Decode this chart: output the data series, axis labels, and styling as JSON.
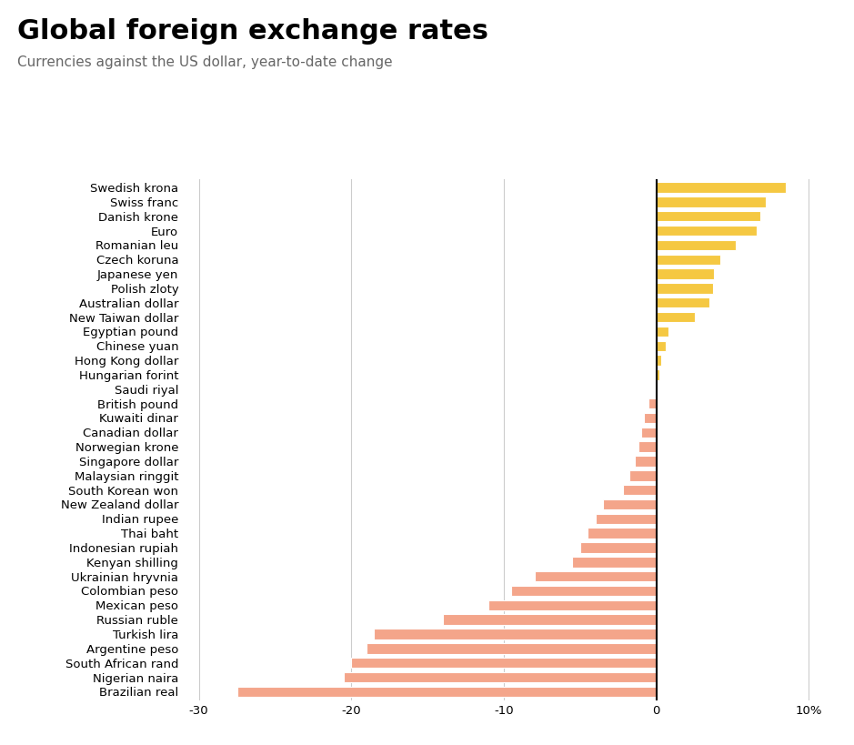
{
  "title": "Global foreign exchange rates",
  "subtitle": "Currencies against the US dollar, year-to-date change",
  "currencies": [
    "Swedish krona",
    "Swiss franc",
    "Danish krone",
    "Euro",
    "Romanian leu",
    "Czech koruna",
    "Japanese yen",
    "Polish zloty",
    "Australian dollar",
    "New Taiwan dollar",
    "Egyptian pound",
    "Chinese yuan",
    "Hong Kong dollar",
    "Hungarian forint",
    "Saudi riyal",
    "British pound",
    "Kuwaiti dinar",
    "Canadian dollar",
    "Norwegian krone",
    "Singapore dollar",
    "Malaysian ringgit",
    "South Korean won",
    "New Zealand dollar",
    "Indian rupee",
    "Thai baht",
    "Indonesian rupiah",
    "Kenyan shilling",
    "Ukrainian hryvnia",
    "Colombian peso",
    "Mexican peso",
    "Russian ruble",
    "Turkish lira",
    "Argentine peso",
    "South African rand",
    "Nigerian naira",
    "Brazilian real"
  ],
  "values": [
    8.5,
    7.2,
    6.8,
    6.6,
    5.2,
    4.2,
    3.8,
    3.7,
    3.5,
    2.5,
    0.8,
    0.6,
    0.3,
    0.2,
    0.0,
    -0.5,
    -0.8,
    -1.0,
    -1.2,
    -1.4,
    -1.8,
    -2.2,
    -3.5,
    -4.0,
    -4.5,
    -5.0,
    -5.5,
    -8.0,
    -9.5,
    -11.0,
    -14.0,
    -18.5,
    -19.0,
    -20.0,
    -20.5,
    -27.5
  ],
  "positive_color": "#F5C842",
  "negative_color": "#F4A58A",
  "axis_line_color": "#000000",
  "grid_color": "#cccccc",
  "background_color": "#ffffff",
  "title_fontsize": 22,
  "subtitle_fontsize": 11,
  "tick_fontsize": 9.5,
  "xlim": [
    -31,
    11
  ],
  "xticks": [
    -30,
    -20,
    -10,
    0,
    10
  ],
  "xticklabels": [
    "-30",
    "-20",
    "-10",
    "0",
    "10%"
  ]
}
